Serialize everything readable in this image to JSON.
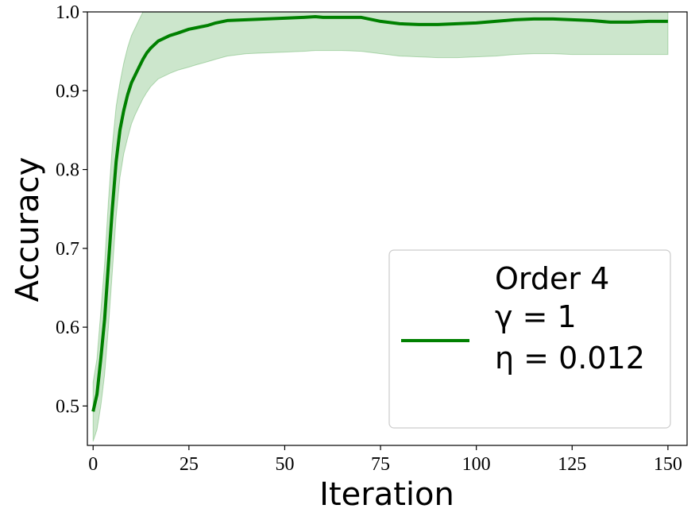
{
  "chart_data": {
    "type": "line",
    "title": "",
    "xlabel": "Iteration",
    "ylabel": "Accuracy",
    "xlim": [
      -1.5,
      155
    ],
    "ylim": [
      0.45,
      1.0
    ],
    "xticks": [
      0,
      25,
      50,
      75,
      100,
      125,
      150
    ],
    "yticks": [
      0.5,
      0.6,
      0.7,
      0.8,
      0.9,
      1.0
    ],
    "xtick_labels": [
      "0",
      "25",
      "50",
      "75",
      "100",
      "125",
      "150"
    ],
    "ytick_labels": [
      "0.5",
      "0.6",
      "0.7",
      "0.8",
      "0.9",
      "1.0"
    ],
    "grid": false,
    "legend_position": "lower-right",
    "legend": {
      "lines": [
        "Order 4",
        "γ = 1",
        "η = 0.012"
      ]
    },
    "colors": {
      "line": "#008000",
      "band": "#008000"
    },
    "series": [
      {
        "x": [
          0,
          1,
          2,
          3,
          4,
          5,
          6,
          7,
          8,
          9,
          10,
          11,
          12,
          13,
          14,
          15,
          17,
          20,
          22,
          25,
          27,
          30,
          32,
          35,
          40,
          45,
          50,
          55,
          58,
          60,
          65,
          70,
          75,
          80,
          85,
          90,
          95,
          100,
          105,
          110,
          115,
          120,
          125,
          130,
          135,
          140,
          145,
          150
        ],
        "y": [
          0.493,
          0.515,
          0.56,
          0.61,
          0.68,
          0.75,
          0.81,
          0.85,
          0.875,
          0.895,
          0.91,
          0.92,
          0.93,
          0.94,
          0.948,
          0.954,
          0.963,
          0.97,
          0.973,
          0.978,
          0.98,
          0.983,
          0.986,
          0.989,
          0.99,
          0.991,
          0.992,
          0.993,
          0.994,
          0.993,
          0.993,
          0.993,
          0.988,
          0.985,
          0.984,
          0.984,
          0.985,
          0.986,
          0.988,
          0.99,
          0.991,
          0.991,
          0.99,
          0.989,
          0.987,
          0.987,
          0.988,
          0.988
        ],
        "lower": [
          0.455,
          0.47,
          0.5,
          0.54,
          0.6,
          0.67,
          0.74,
          0.79,
          0.82,
          0.84,
          0.858,
          0.87,
          0.88,
          0.89,
          0.898,
          0.905,
          0.915,
          0.922,
          0.926,
          0.93,
          0.933,
          0.937,
          0.94,
          0.944,
          0.947,
          0.948,
          0.949,
          0.95,
          0.951,
          0.951,
          0.951,
          0.95,
          0.947,
          0.944,
          0.943,
          0.942,
          0.942,
          0.943,
          0.944,
          0.946,
          0.947,
          0.947,
          0.946,
          0.946,
          0.946,
          0.946,
          0.946,
          0.946
        ],
        "upper": [
          0.53,
          0.56,
          0.62,
          0.68,
          0.76,
          0.83,
          0.88,
          0.91,
          0.935,
          0.955,
          0.97,
          0.98,
          0.99,
          1.0,
          1.0,
          1.0,
          1.0,
          1.0,
          1.0,
          1.0,
          1.0,
          1.0,
          1.0,
          1.0,
          1.0,
          1.0,
          1.0,
          1.0,
          1.0,
          1.0,
          1.0,
          1.0,
          1.0,
          1.0,
          1.0,
          1.0,
          1.0,
          1.0,
          1.0,
          1.0,
          1.0,
          1.0,
          1.0,
          1.0,
          1.0,
          1.0,
          1.0,
          1.0
        ]
      }
    ]
  }
}
